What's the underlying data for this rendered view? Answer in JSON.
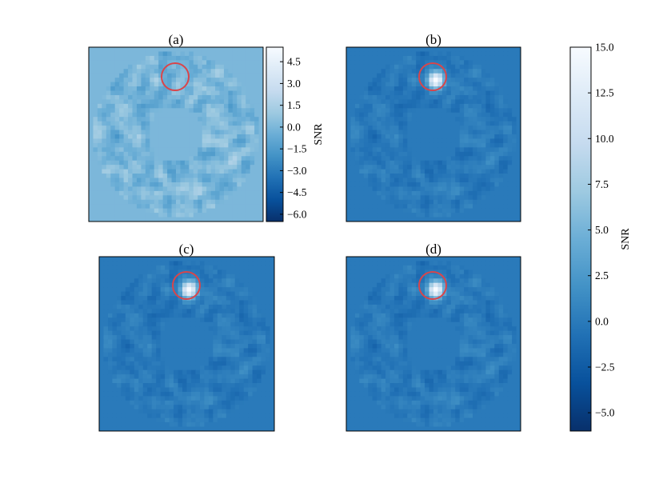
{
  "chart_data": {
    "type": "heatmap",
    "colormap": "Blues_r",
    "panels": [
      {
        "title": "(a)",
        "clim": [
          -6.5,
          5.5
        ],
        "planet_snr": 0
      },
      {
        "title": "(b)",
        "clim": [
          -6.0,
          15.0
        ],
        "planet_snr": 15
      },
      {
        "title": "(c)",
        "clim": [
          -6.0,
          15.0
        ],
        "planet_snr": 15
      },
      {
        "title": "(d)",
        "clim": [
          -6.0,
          15.0
        ],
        "planet_snr": 15
      }
    ],
    "colorbars": [
      {
        "label": "SNR",
        "range": [
          -6.5,
          5.5
        ],
        "ticks": [
          "4.5",
          "3.0",
          "1.5",
          "0.0",
          "−1.5",
          "−3.0",
          "−4.5",
          "−6.0"
        ],
        "tick_values": [
          4.5,
          3.0,
          1.5,
          0.0,
          -1.5,
          -3.0,
          -4.5,
          -6.0
        ]
      },
      {
        "label": "SNR",
        "range": [
          -6.0,
          15.0
        ],
        "ticks": [
          "15.0",
          "12.5",
          "10.0",
          "7.5",
          "5.0",
          "2.5",
          "0.0",
          "−2.5",
          "−5.0"
        ],
        "tick_values": [
          15.0,
          12.5,
          10.0,
          7.5,
          5.0,
          2.5,
          0.0,
          -2.5,
          -5.0
        ]
      }
    ],
    "annotations": [
      {
        "type": "circle",
        "color": "#d9454a",
        "marks": "planet position",
        "panels": [
          "(a)",
          "(b)",
          "(c)",
          "(d)"
        ]
      }
    ]
  }
}
